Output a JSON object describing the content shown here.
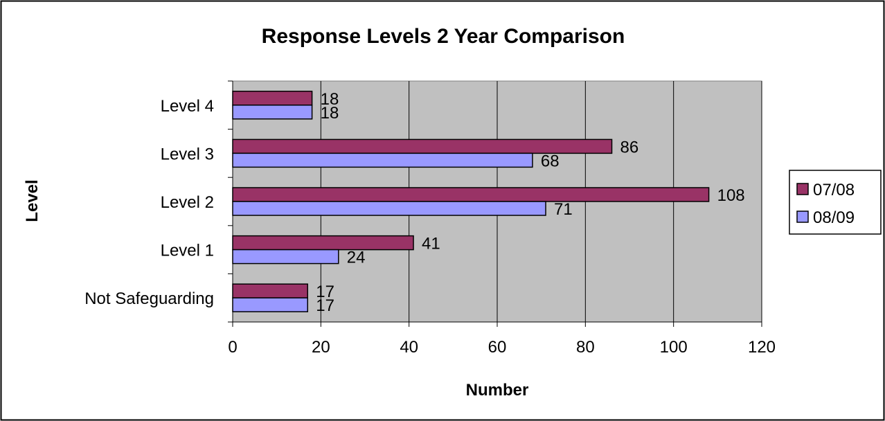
{
  "chart_data": {
    "type": "bar",
    "orientation": "horizontal",
    "title": "Response Levels 2 Year Comparison",
    "xlabel": "Number",
    "ylabel": "Level",
    "categories": [
      "Level 4",
      "Level 3",
      "Level 2",
      "Level 1",
      "Not Safeguarding"
    ],
    "series": [
      {
        "name": "07/08",
        "color": "#993366",
        "values": [
          18,
          86,
          108,
          41,
          17
        ]
      },
      {
        "name": "08/09",
        "color": "#9999ff",
        "values": [
          18,
          68,
          71,
          24,
          17
        ]
      }
    ],
    "xlim": [
      0,
      120
    ],
    "x_ticks": [
      0,
      20,
      40,
      60,
      80,
      100,
      120
    ],
    "grid": "vertical",
    "plot_background": "#c0c0c0",
    "legend_position": "right"
  }
}
